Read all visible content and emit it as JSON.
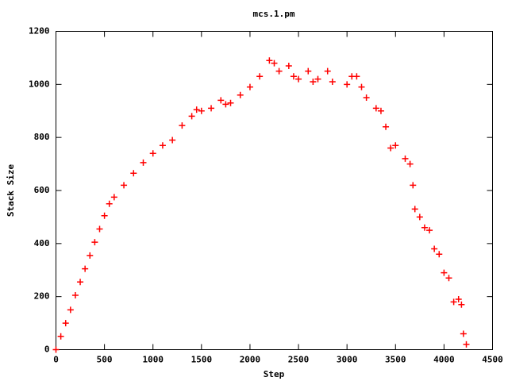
{
  "chart_data": {
    "type": "scatter",
    "title": "mcs.1.pm",
    "x_label": "Step",
    "y_label": "Stack Size",
    "series": [
      {
        "name": "mcs.1.pm",
        "color": "#ff0000",
        "x": [
          0,
          50,
          100,
          150,
          200,
          250,
          300,
          350,
          400,
          450,
          500,
          550,
          600,
          700,
          800,
          900,
          1000,
          1100,
          1200,
          1300,
          1400,
          1450,
          1500,
          1600,
          1700,
          1750,
          1800,
          1900,
          2000,
          2100,
          2200,
          2250,
          2300,
          2400,
          2450,
          2500,
          2600,
          2650,
          2700,
          2800,
          2850,
          3000,
          3050,
          3100,
          3150,
          3200,
          3300,
          3350,
          3400,
          3450,
          3500,
          3600,
          3650,
          3680,
          3700,
          3750,
          3800,
          3850,
          3900,
          3950,
          4000,
          4050,
          4100,
          4150,
          4180,
          4200,
          4230
        ],
        "values": [
          0,
          50,
          100,
          150,
          205,
          255,
          305,
          355,
          405,
          455,
          505,
          550,
          575,
          620,
          665,
          705,
          740,
          770,
          790,
          845,
          880,
          905,
          900,
          910,
          940,
          925,
          930,
          960,
          990,
          1030,
          1090,
          1080,
          1050,
          1070,
          1030,
          1020,
          1050,
          1010,
          1020,
          1050,
          1010,
          1000,
          1030,
          1030,
          990,
          950,
          910,
          900,
          840,
          760,
          770,
          720,
          700,
          620,
          530,
          500,
          460,
          450,
          380,
          360,
          290,
          270,
          180,
          190,
          170,
          60,
          20
        ]
      }
    ],
    "xlim": [
      0,
      4500
    ],
    "xticks": [
      0,
      500,
      1000,
      1500,
      2000,
      2500,
      3000,
      3500,
      4000,
      4500
    ],
    "ylim": [
      0,
      1200
    ],
    "yticks": [
      0,
      200,
      400,
      600,
      800,
      1000,
      1200
    ]
  }
}
